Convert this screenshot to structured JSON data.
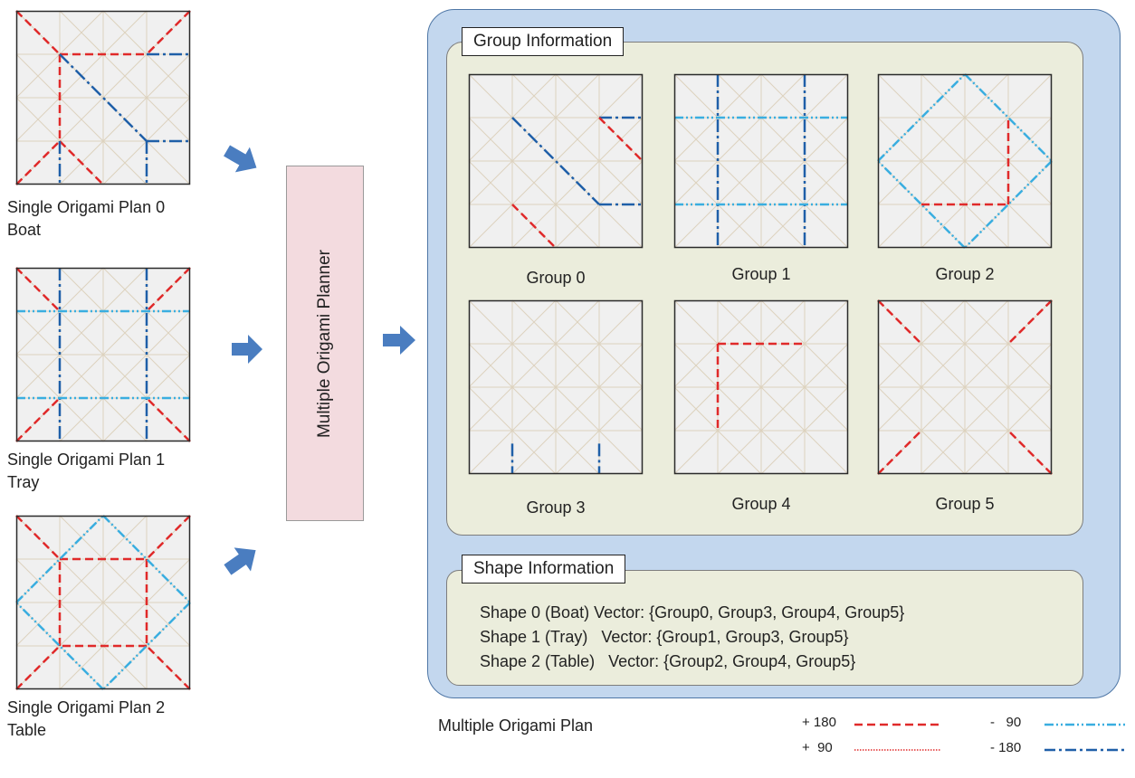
{
  "single_plans": [
    {
      "caption_line1": "Single Origami Plan 0",
      "caption_line2": "Boat"
    },
    {
      "caption_line1": "Single Origami Plan 1",
      "caption_line2": "Tray"
    },
    {
      "caption_line1": "Single Origami Plan 2",
      "caption_line2": "Table"
    }
  ],
  "planner": {
    "label": "Multiple Origami Planner"
  },
  "group_info": {
    "title": "Group Information",
    "groups": [
      "Group 0",
      "Group 1",
      "Group 2",
      "Group 3",
      "Group 4",
      "Group 5"
    ]
  },
  "shape_info": {
    "title": "Shape Information",
    "lines": [
      "Shape 0 (Boat) Vector: {Group0, Group3, Group4, Group5}",
      "Shape 1 (Tray)   Vector: {Group1, Group3, Group5}",
      "Shape 2 (Table)   Vector: {Group2, Group4, Group5}"
    ]
  },
  "multi_plan_label": "Multiple Origami Plan",
  "legend": [
    {
      "label": "+ 180",
      "style": "red-dashed"
    },
    {
      "label": "+  90",
      "style": "red-dotted"
    },
    {
      "label": "-   90",
      "style": "lightblue-dash-dot-dot"
    },
    {
      "label": "- 180",
      "style": "darkblue-dash-dot"
    }
  ],
  "colors": {
    "red": "#e02a2a",
    "dark_blue": "#1f5fa8",
    "light_blue": "#3aaee0",
    "arrow": "#4a7dc0",
    "planner_fill": "#f3dbdf",
    "outer_panel": "#c3d7ee",
    "inner_panel": "#ebeddc"
  }
}
